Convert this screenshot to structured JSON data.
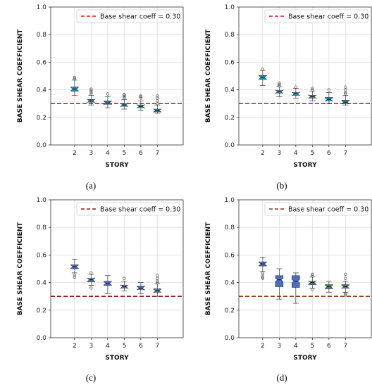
{
  "chart_data": [
    {
      "panel": "(a)",
      "type": "box",
      "xlabel": "STORY",
      "ylabel": "BASE SHEAR COEFFICIENT",
      "categories": [
        "2",
        "3",
        "4",
        "5",
        "6",
        "7"
      ],
      "ylim": [
        0.0,
        1.0
      ],
      "yticks": [
        "0.0",
        "0.2",
        "0.4",
        "0.6",
        "0.8",
        "1.0"
      ],
      "grid": true,
      "legend": {
        "label": "Base shear coeff = 0.30",
        "placement": "top-right"
      },
      "reference_line": {
        "y": 0.3,
        "color": "#e31a1c"
      },
      "box_color": "#1f8fb0",
      "boxes": [
        {
          "min": 0.36,
          "q1": 0.39,
          "median": 0.405,
          "q3": 0.42,
          "max": 0.47,
          "outliers": [
            0.48,
            0.49
          ]
        },
        {
          "min": 0.29,
          "q1": 0.31,
          "median": 0.32,
          "q3": 0.33,
          "max": 0.36,
          "outliers": [
            0.37,
            0.38,
            0.395,
            0.405
          ]
        },
        {
          "min": 0.27,
          "q1": 0.295,
          "median": 0.305,
          "q3": 0.32,
          "max": 0.35,
          "outliers": [
            0.37
          ]
        },
        {
          "min": 0.26,
          "q1": 0.28,
          "median": 0.29,
          "q3": 0.3,
          "max": 0.33,
          "outliers": [
            0.34,
            0.35,
            0.36,
            0.365
          ]
        },
        {
          "min": 0.25,
          "q1": 0.27,
          "median": 0.28,
          "q3": 0.29,
          "max": 0.32,
          "outliers": [
            0.34,
            0.35,
            0.355
          ]
        },
        {
          "min": 0.23,
          "q1": 0.24,
          "median": 0.25,
          "q3": 0.26,
          "max": 0.29,
          "outliers": [
            0.3,
            0.32,
            0.34,
            0.355
          ]
        }
      ]
    },
    {
      "panel": "(b)",
      "type": "box",
      "xlabel": "STORY",
      "ylabel": "BASE SHEAR COEFFICIENT",
      "categories": [
        "2",
        "3",
        "4",
        "5",
        "6",
        "7"
      ],
      "ylim": [
        0.0,
        1.0
      ],
      "yticks": [
        "0.0",
        "0.2",
        "0.4",
        "0.6",
        "0.8",
        "1.0"
      ],
      "grid": true,
      "legend": {
        "label": "Base shear coeff = 0.30",
        "placement": "top-right"
      },
      "reference_line": {
        "y": 0.3,
        "color": "#e31a1c"
      },
      "box_color": "#1f8fb0",
      "boxes": [
        {
          "min": 0.43,
          "q1": 0.475,
          "median": 0.49,
          "q3": 0.505,
          "max": 0.54,
          "outliers": [
            0.55
          ]
        },
        {
          "min": 0.35,
          "q1": 0.375,
          "median": 0.385,
          "q3": 0.395,
          "max": 0.42,
          "outliers": [
            0.43,
            0.44,
            0.45
          ]
        },
        {
          "min": 0.34,
          "q1": 0.36,
          "median": 0.37,
          "q3": 0.38,
          "max": 0.41,
          "outliers": [
            0.42
          ]
        },
        {
          "min": 0.32,
          "q1": 0.34,
          "median": 0.35,
          "q3": 0.36,
          "max": 0.39,
          "outliers": [
            0.4,
            0.41
          ]
        },
        {
          "min": 0.3,
          "q1": 0.32,
          "median": 0.33,
          "q3": 0.345,
          "max": 0.38,
          "outliers": [
            0.4
          ]
        },
        {
          "min": 0.29,
          "q1": 0.3,
          "median": 0.31,
          "q3": 0.325,
          "max": 0.36,
          "outliers": [
            0.37,
            0.38,
            0.4,
            0.42
          ]
        }
      ]
    },
    {
      "panel": "(c)",
      "type": "box",
      "xlabel": "STORY",
      "ylabel": "BASE SHEAR COEFFICIENT",
      "categories": [
        "2",
        "3",
        "4",
        "5",
        "6",
        "7"
      ],
      "ylim": [
        0.0,
        1.0
      ],
      "yticks": [
        "0.0",
        "0.2",
        "0.4",
        "0.6",
        "0.8",
        "1.0"
      ],
      "grid": true,
      "legend": {
        "label": "Base shear coeff = 0.30",
        "placement": "top-right"
      },
      "reference_line": {
        "y": 0.3,
        "color": "#8b1a1a"
      },
      "box_color": "#4a6fc0",
      "boxes": [
        {
          "min": 0.47,
          "q1": 0.5,
          "median": 0.515,
          "q3": 0.53,
          "max": 0.57,
          "outliers": [
            0.44,
            0.455
          ]
        },
        {
          "min": 0.38,
          "q1": 0.405,
          "median": 0.42,
          "q3": 0.43,
          "max": 0.46,
          "outliers": [
            0.36,
            0.47
          ]
        },
        {
          "min": 0.32,
          "q1": 0.38,
          "median": 0.395,
          "q3": 0.41,
          "max": 0.45,
          "outliers": []
        },
        {
          "min": 0.34,
          "q1": 0.36,
          "median": 0.37,
          "q3": 0.38,
          "max": 0.41,
          "outliers": [
            0.43
          ]
        },
        {
          "min": 0.32,
          "q1": 0.35,
          "median": 0.36,
          "q3": 0.375,
          "max": 0.4,
          "outliers": []
        },
        {
          "min": 0.3,
          "q1": 0.33,
          "median": 0.34,
          "q3": 0.355,
          "max": 0.39,
          "outliers": [
            0.4,
            0.41,
            0.43,
            0.45
          ]
        }
      ]
    },
    {
      "panel": "(d)",
      "type": "box",
      "xlabel": "STORY",
      "ylabel": "BASE SHEAR COEFFICIENT",
      "categories": [
        "2",
        "3",
        "4",
        "5",
        "6",
        "7"
      ],
      "ylim": [
        0.0,
        1.0
      ],
      "yticks": [
        "0.0",
        "0.2",
        "0.4",
        "0.6",
        "0.8",
        "1.0"
      ],
      "grid": true,
      "legend": {
        "label": "Base shear coeff = 0.30",
        "placement": "top-right"
      },
      "reference_line": {
        "y": 0.3,
        "color": "#8b3a1a"
      },
      "box_color": "#4a6fc0",
      "boxes": [
        {
          "min": 0.48,
          "q1": 0.52,
          "median": 0.535,
          "q3": 0.55,
          "max": 0.585,
          "outliers": [
            0.43,
            0.44,
            0.455,
            0.47
          ]
        },
        {
          "min": 0.28,
          "q1": 0.37,
          "median": 0.42,
          "q3": 0.45,
          "max": 0.5,
          "outliers": []
        },
        {
          "min": 0.25,
          "q1": 0.365,
          "median": 0.41,
          "q3": 0.45,
          "max": 0.47,
          "outliers": []
        },
        {
          "min": 0.36,
          "q1": 0.385,
          "median": 0.4,
          "q3": 0.41,
          "max": 0.44,
          "outliers": [
            0.35,
            0.45,
            0.46
          ]
        },
        {
          "min": 0.33,
          "q1": 0.355,
          "median": 0.37,
          "q3": 0.385,
          "max": 0.41,
          "outliers": []
        },
        {
          "min": 0.33,
          "q1": 0.36,
          "median": 0.37,
          "q3": 0.385,
          "max": 0.41,
          "outliers": [
            0.31,
            0.32,
            0.43,
            0.46
          ]
        }
      ]
    }
  ]
}
